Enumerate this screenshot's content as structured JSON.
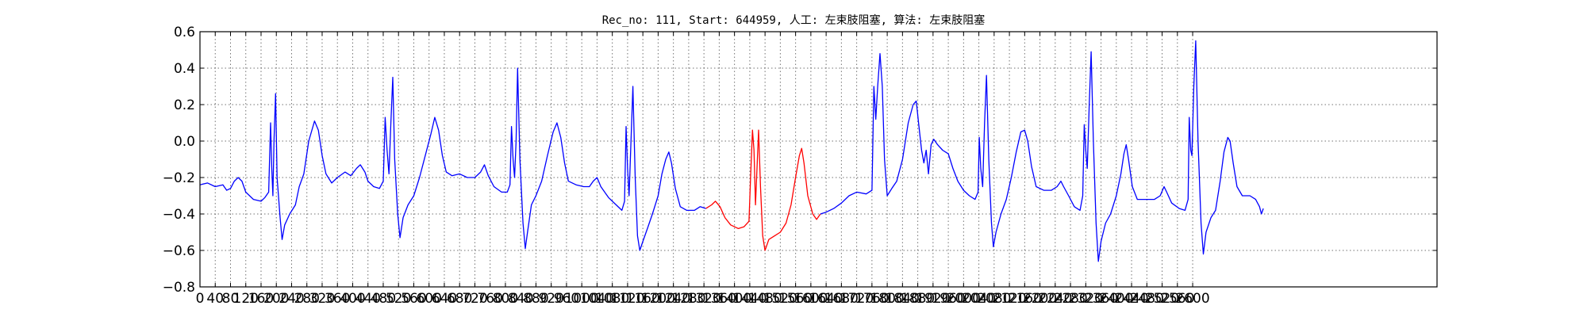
{
  "chart_data": {
    "type": "line",
    "title": "Rec_no: 111, Start: 644959, 人工: 左束肢阻塞, 算法: 左束肢阻塞",
    "xlabel": "",
    "ylabel": "",
    "xlim": [
      0,
      3240
    ],
    "ylim": [
      -0.8,
      0.6
    ],
    "grid": true,
    "legend": "none",
    "x_ticks": [
      0,
      40,
      80,
      120,
      160,
      200,
      240,
      280,
      320,
      360,
      400,
      440,
      480,
      520,
      560,
      600,
      640,
      680,
      720,
      760,
      800,
      840,
      880,
      920,
      960,
      1000,
      1040,
      1080,
      1120,
      1160,
      1200,
      1240,
      1280,
      1320,
      1360,
      1400,
      1440,
      1480,
      1520,
      1560,
      1600,
      1640,
      1680,
      1720,
      1760,
      1800,
      1840,
      1880,
      1920,
      1960,
      2000,
      2040,
      2080,
      2120,
      2160,
      2200,
      2240,
      2280,
      2320,
      2360,
      2400,
      2440,
      2480,
      2520,
      2560,
      2600
    ],
    "y_ticks": [
      -0.8,
      -0.6,
      -0.4,
      -0.2,
      0.0,
      0.2,
      0.4,
      0.6
    ],
    "y_tick_labels": [
      "−0.8",
      "−0.6",
      "−0.4",
      "−0.2",
      "0.0",
      "0.2",
      "0.4",
      "0.6"
    ],
    "series": [
      {
        "color": "#0000ff",
        "points": [
          [
            0,
            -0.24
          ],
          [
            20,
            -0.23
          ],
          [
            40,
            -0.25
          ],
          [
            60,
            -0.24
          ],
          [
            70,
            -0.27
          ],
          [
            80,
            -0.26
          ],
          [
            90,
            -0.22
          ],
          [
            100,
            -0.2
          ],
          [
            110,
            -0.22
          ],
          [
            120,
            -0.28
          ],
          [
            140,
            -0.32
          ],
          [
            160,
            -0.33
          ],
          [
            170,
            -0.31
          ],
          [
            180,
            -0.28
          ],
          [
            185,
            0.1
          ],
          [
            188,
            -0.15
          ],
          [
            191,
            -0.3
          ],
          [
            194,
            0.0
          ],
          [
            198,
            0.26
          ],
          [
            202,
            -0.2
          ],
          [
            210,
            -0.42
          ],
          [
            215,
            -0.54
          ],
          [
            222,
            -0.46
          ],
          [
            235,
            -0.4
          ],
          [
            250,
            -0.35
          ],
          [
            260,
            -0.25
          ],
          [
            272,
            -0.18
          ],
          [
            285,
            0.0
          ],
          [
            300,
            0.11
          ],
          [
            310,
            0.06
          ],
          [
            320,
            -0.08
          ],
          [
            330,
            -0.18
          ],
          [
            345,
            -0.23
          ],
          [
            360,
            -0.2
          ],
          [
            380,
            -0.17
          ],
          [
            395,
            -0.19
          ],
          [
            410,
            -0.15
          ],
          [
            420,
            -0.13
          ],
          [
            432,
            -0.17
          ],
          [
            440,
            -0.22
          ],
          [
            455,
            -0.25
          ],
          [
            470,
            -0.26
          ],
          [
            480,
            -0.22
          ],
          [
            485,
            0.13
          ],
          [
            490,
            -0.05
          ],
          [
            495,
            -0.18
          ],
          [
            500,
            0.1
          ],
          [
            505,
            0.35
          ],
          [
            510,
            -0.1
          ],
          [
            518,
            -0.4
          ],
          [
            524,
            -0.53
          ],
          [
            532,
            -0.42
          ],
          [
            545,
            -0.35
          ],
          [
            560,
            -0.3
          ],
          [
            575,
            -0.2
          ],
          [
            590,
            -0.08
          ],
          [
            605,
            0.04
          ],
          [
            615,
            0.13
          ],
          [
            625,
            0.06
          ],
          [
            635,
            -0.08
          ],
          [
            645,
            -0.17
          ],
          [
            660,
            -0.19
          ],
          [
            680,
            -0.18
          ],
          [
            700,
            -0.2
          ],
          [
            720,
            -0.2
          ],
          [
            735,
            -0.17
          ],
          [
            745,
            -0.13
          ],
          [
            755,
            -0.19
          ],
          [
            770,
            -0.25
          ],
          [
            790,
            -0.28
          ],
          [
            805,
            -0.28
          ],
          [
            812,
            -0.24
          ],
          [
            816,
            0.08
          ],
          [
            820,
            -0.1
          ],
          [
            824,
            -0.2
          ],
          [
            828,
            0.0
          ],
          [
            832,
            0.4
          ],
          [
            838,
            -0.1
          ],
          [
            846,
            -0.45
          ],
          [
            852,
            -0.59
          ],
          [
            858,
            -0.5
          ],
          [
            868,
            -0.35
          ],
          [
            880,
            -0.3
          ],
          [
            895,
            -0.22
          ],
          [
            910,
            -0.08
          ],
          [
            925,
            0.05
          ],
          [
            935,
            0.1
          ],
          [
            945,
            0.02
          ],
          [
            955,
            -0.12
          ],
          [
            965,
            -0.22
          ],
          [
            985,
            -0.24
          ],
          [
            1005,
            -0.25
          ],
          [
            1020,
            -0.25
          ],
          [
            1030,
            -0.22
          ],
          [
            1040,
            -0.2
          ],
          [
            1050,
            -0.25
          ],
          [
            1070,
            -0.31
          ],
          [
            1090,
            -0.35
          ],
          [
            1105,
            -0.38
          ],
          [
            1112,
            -0.33
          ],
          [
            1116,
            0.08
          ],
          [
            1120,
            -0.15
          ],
          [
            1124,
            -0.3
          ],
          [
            1129,
            0.0
          ],
          [
            1134,
            0.3
          ],
          [
            1140,
            -0.2
          ],
          [
            1146,
            -0.52
          ],
          [
            1152,
            -0.6
          ],
          [
            1160,
            -0.55
          ],
          [
            1172,
            -0.48
          ],
          [
            1185,
            -0.4
          ],
          [
            1200,
            -0.3
          ],
          [
            1210,
            -0.18
          ],
          [
            1220,
            -0.1
          ],
          [
            1228,
            -0.06
          ],
          [
            1235,
            -0.12
          ],
          [
            1245,
            -0.26
          ],
          [
            1258,
            -0.36
          ],
          [
            1275,
            -0.38
          ],
          [
            1295,
            -0.38
          ],
          [
            1310,
            -0.36
          ],
          [
            1325,
            -0.37
          ]
        ]
      },
      {
        "color": "#ff0000",
        "points": [
          [
            1325,
            -0.37
          ],
          [
            1340,
            -0.35
          ],
          [
            1350,
            -0.33
          ],
          [
            1362,
            -0.36
          ],
          [
            1375,
            -0.42
          ],
          [
            1390,
            -0.46
          ],
          [
            1410,
            -0.48
          ],
          [
            1425,
            -0.47
          ],
          [
            1438,
            -0.44
          ],
          [
            1442,
            -0.2
          ],
          [
            1447,
            0.06
          ],
          [
            1451,
            -0.05
          ],
          [
            1455,
            -0.35
          ],
          [
            1459,
            -0.15
          ],
          [
            1463,
            0.06
          ],
          [
            1468,
            -0.25
          ],
          [
            1474,
            -0.52
          ],
          [
            1480,
            -0.6
          ],
          [
            1490,
            -0.54
          ],
          [
            1505,
            -0.52
          ],
          [
            1520,
            -0.5
          ],
          [
            1535,
            -0.45
          ],
          [
            1548,
            -0.35
          ],
          [
            1560,
            -0.2
          ],
          [
            1570,
            -0.08
          ],
          [
            1576,
            -0.04
          ],
          [
            1582,
            -0.12
          ],
          [
            1592,
            -0.3
          ],
          [
            1605,
            -0.4
          ],
          [
            1615,
            -0.43
          ],
          [
            1625,
            -0.4
          ]
        ]
      },
      {
        "color": "#0000ff",
        "points": [
          [
            1625,
            -0.4
          ],
          [
            1640,
            -0.39
          ],
          [
            1660,
            -0.37
          ],
          [
            1680,
            -0.34
          ],
          [
            1700,
            -0.3
          ],
          [
            1720,
            -0.28
          ],
          [
            1745,
            -0.29
          ],
          [
            1760,
            -0.27
          ],
          [
            1765,
            0.3
          ],
          [
            1770,
            0.12
          ],
          [
            1775,
            0.3
          ],
          [
            1781,
            0.48
          ],
          [
            1787,
            0.3
          ],
          [
            1793,
            -0.1
          ],
          [
            1800,
            -0.3
          ],
          [
            1812,
            -0.26
          ],
          [
            1825,
            -0.22
          ],
          [
            1840,
            -0.1
          ],
          [
            1855,
            0.1
          ],
          [
            1868,
            0.2
          ],
          [
            1876,
            0.22
          ],
          [
            1882,
            0.1
          ],
          [
            1890,
            -0.05
          ],
          [
            1896,
            -0.12
          ],
          [
            1902,
            -0.05
          ],
          [
            1908,
            -0.18
          ],
          [
            1915,
            -0.02
          ],
          [
            1922,
            0.01
          ],
          [
            1932,
            -0.02
          ],
          [
            1945,
            -0.05
          ],
          [
            1960,
            -0.07
          ],
          [
            1972,
            -0.15
          ],
          [
            1985,
            -0.22
          ],
          [
            2000,
            -0.27
          ],
          [
            2015,
            -0.3
          ],
          [
            2030,
            -0.32
          ],
          [
            2038,
            -0.28
          ],
          [
            2041,
            0.02
          ],
          [
            2045,
            -0.15
          ],
          [
            2050,
            -0.25
          ],
          [
            2055,
            0.1
          ],
          [
            2060,
            0.36
          ],
          [
            2066,
            -0.1
          ],
          [
            2073,
            -0.45
          ],
          [
            2078,
            -0.58
          ],
          [
            2085,
            -0.5
          ],
          [
            2098,
            -0.4
          ],
          [
            2112,
            -0.32
          ],
          [
            2125,
            -0.2
          ],
          [
            2138,
            -0.06
          ],
          [
            2150,
            0.05
          ],
          [
            2160,
            0.06
          ],
          [
            2168,
            0.0
          ],
          [
            2178,
            -0.14
          ],
          [
            2190,
            -0.25
          ],
          [
            2210,
            -0.27
          ],
          [
            2230,
            -0.27
          ],
          [
            2245,
            -0.25
          ],
          [
            2255,
            -0.22
          ],
          [
            2262,
            -0.25
          ],
          [
            2275,
            -0.3
          ],
          [
            2290,
            -0.36
          ],
          [
            2305,
            -0.38
          ],
          [
            2312,
            -0.3
          ],
          [
            2316,
            0.09
          ],
          [
            2320,
            -0.05
          ],
          [
            2324,
            -0.15
          ],
          [
            2329,
            0.2
          ],
          [
            2334,
            0.49
          ],
          [
            2340,
            0.0
          ],
          [
            2347,
            -0.45
          ],
          [
            2353,
            -0.66
          ],
          [
            2360,
            -0.55
          ],
          [
            2372,
            -0.45
          ],
          [
            2385,
            -0.4
          ],
          [
            2400,
            -0.3
          ],
          [
            2412,
            -0.18
          ],
          [
            2420,
            -0.07
          ],
          [
            2426,
            -0.02
          ],
          [
            2432,
            -0.1
          ],
          [
            2442,
            -0.25
          ],
          [
            2455,
            -0.32
          ],
          [
            2480,
            -0.32
          ],
          [
            2500,
            -0.32
          ],
          [
            2515,
            -0.3
          ],
          [
            2525,
            -0.25
          ],
          [
            2532,
            -0.28
          ],
          [
            2545,
            -0.34
          ],
          [
            2565,
            -0.37
          ],
          [
            2580,
            -0.38
          ],
          [
            2588,
            -0.32
          ],
          [
            2591,
            0.13
          ],
          [
            2595,
            -0.05
          ],
          [
            2598,
            -0.08
          ],
          [
            2603,
            0.3
          ],
          [
            2608,
            0.55
          ],
          [
            2614,
            0.0
          ],
          [
            2622,
            -0.45
          ],
          [
            2628,
            -0.62
          ],
          [
            2635,
            -0.5
          ],
          [
            2648,
            -0.42
          ],
          [
            2660,
            -0.38
          ],
          [
            2672,
            -0.22
          ],
          [
            2682,
            -0.06
          ],
          [
            2692,
            0.02
          ],
          [
            2698,
            0.0
          ],
          [
            2706,
            -0.12
          ],
          [
            2716,
            -0.25
          ],
          [
            2730,
            -0.3
          ],
          [
            2750,
            -0.3
          ],
          [
            2765,
            -0.32
          ],
          [
            2775,
            -0.36
          ],
          [
            2780,
            -0.4
          ],
          [
            2785,
            -0.37
          ]
        ]
      }
    ]
  }
}
